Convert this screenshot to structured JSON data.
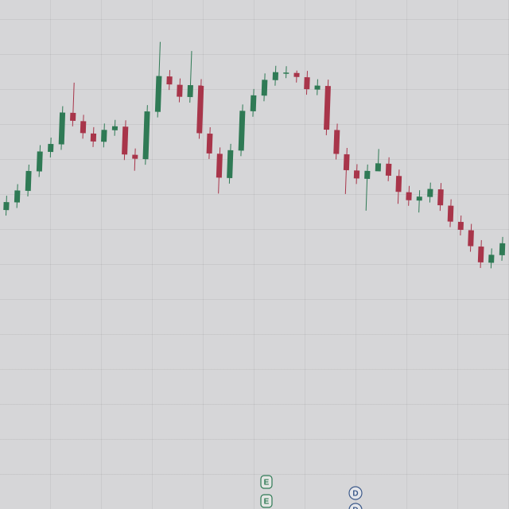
{
  "chart_data": {
    "type": "candlestick",
    "open": [
      365,
      375,
      390,
      415,
      440,
      450,
      490,
      480,
      465,
      455,
      470,
      475,
      440,
      435,
      495,
      540,
      530,
      515,
      530,
      470,
      445,
      415,
      450,
      500,
      520,
      540,
      550,
      550,
      545,
      530,
      535,
      480,
      450,
      430,
      420,
      430,
      440,
      425,
      405,
      395,
      400,
      410,
      390,
      370,
      360,
      340,
      320,
      330
    ],
    "high": [
      383,
      398,
      423,
      448,
      458,
      498,
      528,
      488,
      473,
      478,
      483,
      483,
      448,
      503,
      583,
      548,
      538,
      573,
      538,
      478,
      453,
      458,
      508,
      528,
      548,
      558,
      558,
      553,
      553,
      543,
      543,
      488,
      458,
      438,
      438,
      458,
      448,
      433,
      413,
      408,
      418,
      418,
      398,
      378,
      368,
      348,
      338,
      353
    ],
    "low": [
      358,
      368,
      383,
      408,
      433,
      443,
      473,
      458,
      448,
      448,
      463,
      433,
      420,
      428,
      488,
      523,
      508,
      508,
      463,
      438,
      395,
      408,
      443,
      493,
      513,
      533,
      543,
      538,
      523,
      523,
      473,
      443,
      400,
      413,
      380,
      433,
      418,
      390,
      388,
      380,
      393,
      383,
      363,
      353,
      333,
      313,
      313,
      323
    ],
    "close": [
      375,
      390,
      415,
      440,
      450,
      490,
      480,
      465,
      455,
      470,
      475,
      440,
      435,
      495,
      540,
      530,
      515,
      530,
      470,
      445,
      415,
      450,
      500,
      520,
      540,
      550,
      550,
      545,
      530,
      535,
      480,
      450,
      430,
      420,
      430,
      440,
      425,
      405,
      395,
      400,
      410,
      390,
      370,
      360,
      340,
      320,
      330,
      345
    ],
    "up_color": "#2f7a55",
    "down_color": "#a8354a",
    "ylim": [
      0,
      640
    ],
    "annotations": [
      "E",
      "E",
      "D",
      "D"
    ]
  }
}
